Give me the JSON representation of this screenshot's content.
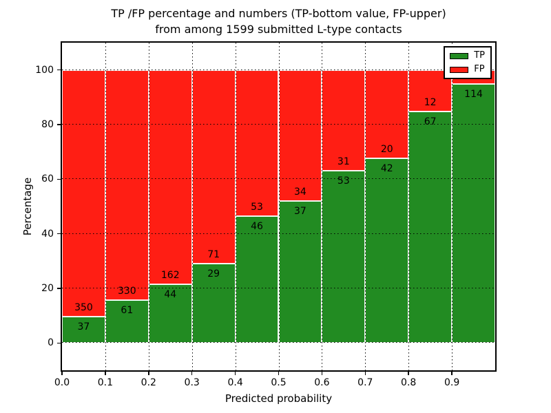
{
  "chart_data": {
    "type": "bar",
    "stacked": true,
    "title": "TP /FP percentage and numbers (TP-bottom value, FP-upper)",
    "subtitle": "from among 1599 submitted L-type contacts",
    "xlabel": "Predicted probability",
    "ylabel": "Percentage",
    "xlim": [
      0.0,
      1.0
    ],
    "ylim": [
      -10,
      110
    ],
    "xtick_values": [
      0.0,
      0.1,
      0.2,
      0.3,
      0.4,
      0.5,
      0.6,
      0.7,
      0.8,
      0.9
    ],
    "xtick_labels": [
      "0.0",
      "0.1",
      "0.2",
      "0.3",
      "0.4",
      "0.5",
      "0.6",
      "0.7",
      "0.8",
      "0.9"
    ],
    "ytick_values": [
      0,
      20,
      40,
      60,
      80,
      100
    ],
    "ytick_labels": [
      "0",
      "20",
      "40",
      "60",
      "80",
      "100"
    ],
    "grid": "dotted, drawn over bars",
    "colors": {
      "tp": "#228B22",
      "fp": "#FF1E14",
      "grid": "#000000",
      "frame": "#000000",
      "background": "#FFFFFF"
    },
    "legend": {
      "position": "upper right",
      "entries": [
        {
          "label": "TP",
          "color": "#228B22"
        },
        {
          "label": "FP",
          "color": "#FF1E14"
        }
      ]
    },
    "bins": [
      {
        "x0": 0.0,
        "x1": 0.1,
        "tp_count": 37,
        "fp_count": 350,
        "tp_pct": 9.6,
        "fp_pct": 90.4
      },
      {
        "x0": 0.1,
        "x1": 0.2,
        "tp_count": 61,
        "fp_count": 330,
        "tp_pct": 15.6,
        "fp_pct": 84.4
      },
      {
        "x0": 0.2,
        "x1": 0.3,
        "tp_count": 44,
        "fp_count": 162,
        "tp_pct": 21.4,
        "fp_pct": 78.6
      },
      {
        "x0": 0.3,
        "x1": 0.4,
        "tp_count": 29,
        "fp_count": 71,
        "tp_pct": 29.0,
        "fp_pct": 71.0
      },
      {
        "x0": 0.4,
        "x1": 0.5,
        "tp_count": 46,
        "fp_count": 53,
        "tp_pct": 46.5,
        "fp_pct": 53.5
      },
      {
        "x0": 0.5,
        "x1": 0.6,
        "tp_count": 37,
        "fp_count": 34,
        "tp_pct": 52.1,
        "fp_pct": 47.9
      },
      {
        "x0": 0.6,
        "x1": 0.7,
        "tp_count": 53,
        "fp_count": 31,
        "tp_pct": 63.1,
        "fp_pct": 36.9
      },
      {
        "x0": 0.7,
        "x1": 0.8,
        "tp_count": 42,
        "fp_count": 20,
        "tp_pct": 67.7,
        "fp_pct": 32.3
      },
      {
        "x0": 0.8,
        "x1": 0.9,
        "tp_count": 67,
        "fp_count": 12,
        "tp_pct": 84.8,
        "fp_pct": 15.2
      },
      {
        "x0": 0.9,
        "x1": 1.0,
        "tp_count": 114,
        "fp_count": null,
        "tp_pct": 95.0,
        "fp_pct": 5.0
      }
    ]
  }
}
